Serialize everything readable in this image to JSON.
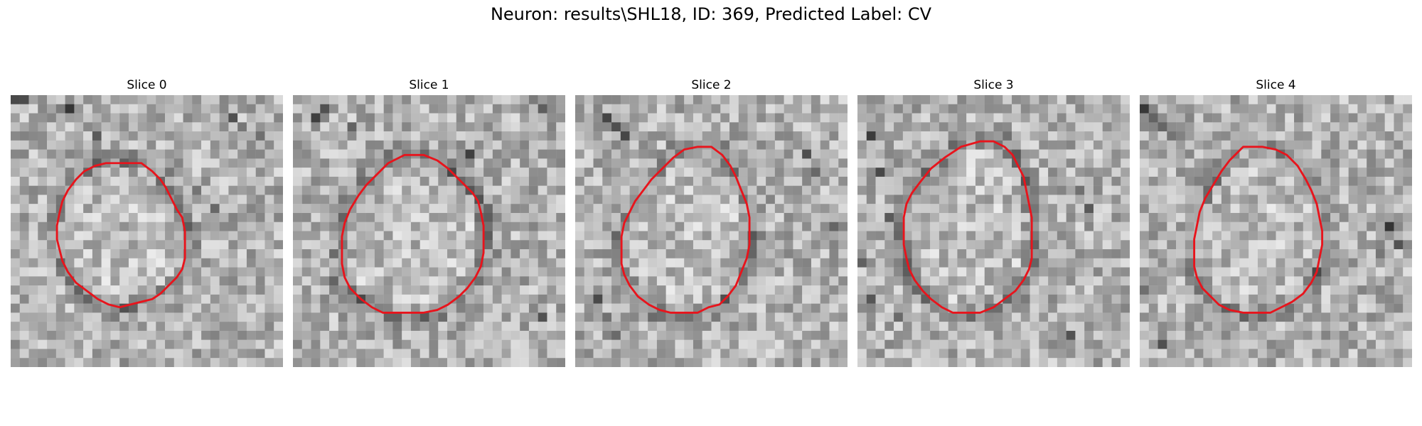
{
  "figure": {
    "title": "Neuron: results\\SHL18, ID: 369, Predicted Label: CV"
  },
  "slices": [
    {
      "label": "Slice 0",
      "seed": 11,
      "contour": [
        [
          40,
          25
        ],
        [
          48,
          25
        ],
        [
          52,
          28
        ],
        [
          55,
          31
        ],
        [
          57,
          34
        ],
        [
          59,
          38
        ],
        [
          61,
          42
        ],
        [
          63,
          45
        ],
        [
          64,
          50
        ],
        [
          64,
          55
        ],
        [
          64,
          60
        ],
        [
          63,
          64
        ],
        [
          61,
          67
        ],
        [
          58,
          70
        ],
        [
          55,
          73
        ],
        [
          52,
          75
        ],
        [
          48,
          76
        ],
        [
          44,
          77
        ],
        [
          40,
          78
        ],
        [
          36,
          77
        ],
        [
          32,
          75
        ],
        [
          28,
          72
        ],
        [
          24,
          69
        ],
        [
          21,
          65
        ],
        [
          19,
          61
        ],
        [
          18,
          57
        ],
        [
          17,
          53
        ],
        [
          17,
          48
        ],
        [
          18,
          43
        ],
        [
          19,
          39
        ],
        [
          21,
          35
        ],
        [
          24,
          31
        ],
        [
          27,
          28
        ],
        [
          31,
          26
        ],
        [
          35,
          25
        ]
      ],
      "grid_dark": [
        [
          0,
          0
        ],
        [
          1,
          0
        ],
        [
          5,
          1
        ],
        [
          6,
          1
        ],
        [
          8,
          3
        ],
        [
          9,
          4
        ],
        [
          24,
          2
        ],
        [
          25,
          3
        ],
        [
          27,
          4
        ],
        [
          26,
          5
        ],
        [
          20,
          10
        ],
        [
          22,
          12
        ]
      ]
    },
    {
      "label": "Slice 1",
      "seed": 23,
      "contour": [
        [
          41,
          22
        ],
        [
          48,
          22
        ],
        [
          53,
          24
        ],
        [
          57,
          27
        ],
        [
          60,
          30
        ],
        [
          63,
          33
        ],
        [
          66,
          36
        ],
        [
          68,
          39
        ],
        [
          69,
          43
        ],
        [
          70,
          48
        ],
        [
          70,
          53
        ],
        [
          70,
          58
        ],
        [
          69,
          63
        ],
        [
          67,
          67
        ],
        [
          64,
          71
        ],
        [
          61,
          74
        ],
        [
          57,
          77
        ],
        [
          53,
          79
        ],
        [
          48,
          80
        ],
        [
          43,
          80
        ],
        [
          38,
          80
        ],
        [
          33,
          80
        ],
        [
          29,
          78
        ],
        [
          25,
          75
        ],
        [
          21,
          71
        ],
        [
          19,
          67
        ],
        [
          18,
          62
        ],
        [
          18,
          57
        ],
        [
          18,
          52
        ],
        [
          19,
          47
        ],
        [
          21,
          42
        ],
        [
          24,
          37
        ],
        [
          27,
          33
        ],
        [
          31,
          29
        ],
        [
          35,
          25
        ]
      ],
      "grid_dark": [
        [
          3,
          1
        ],
        [
          2,
          2
        ],
        [
          6,
          3
        ],
        [
          18,
          5
        ],
        [
          19,
          6
        ],
        [
          26,
          0
        ],
        [
          27,
          1
        ],
        [
          4,
          20
        ],
        [
          5,
          22
        ],
        [
          27,
          24
        ]
      ]
    },
    {
      "label": "Slice 2",
      "seed": 37,
      "contour": [
        [
          45,
          19
        ],
        [
          50,
          19
        ],
        [
          54,
          22
        ],
        [
          57,
          26
        ],
        [
          59,
          30
        ],
        [
          61,
          35
        ],
        [
          63,
          40
        ],
        [
          64,
          45
        ],
        [
          64,
          50
        ],
        [
          64,
          55
        ],
        [
          63,
          60
        ],
        [
          61,
          65
        ],
        [
          59,
          70
        ],
        [
          56,
          74
        ],
        [
          53,
          77
        ],
        [
          49,
          78
        ],
        [
          45,
          80
        ],
        [
          40,
          80
        ],
        [
          35,
          80
        ],
        [
          31,
          79
        ],
        [
          27,
          77
        ],
        [
          23,
          74
        ],
        [
          20,
          70
        ],
        [
          18,
          66
        ],
        [
          17,
          62
        ],
        [
          17,
          57
        ],
        [
          17,
          52
        ],
        [
          18,
          47
        ],
        [
          20,
          43
        ],
        [
          22,
          39
        ],
        [
          25,
          35
        ],
        [
          28,
          31
        ],
        [
          32,
          27
        ],
        [
          36,
          23
        ],
        [
          40,
          20
        ]
      ],
      "grid_dark": [
        [
          3,
          2
        ],
        [
          4,
          3
        ],
        [
          5,
          4
        ],
        [
          2,
          22
        ],
        [
          3,
          24
        ],
        [
          4,
          26
        ],
        [
          25,
          6
        ],
        [
          26,
          8
        ],
        [
          28,
          14
        ],
        [
          27,
          20
        ]
      ]
    },
    {
      "label": "Slice 3",
      "seed": 53,
      "contour": [
        [
          45,
          17
        ],
        [
          50,
          17
        ],
        [
          54,
          19
        ],
        [
          57,
          22
        ],
        [
          59,
          26
        ],
        [
          61,
          30
        ],
        [
          62,
          35
        ],
        [
          63,
          40
        ],
        [
          64,
          45
        ],
        [
          64,
          50
        ],
        [
          64,
          55
        ],
        [
          64,
          60
        ],
        [
          63,
          64
        ],
        [
          61,
          68
        ],
        [
          58,
          72
        ],
        [
          54,
          75
        ],
        [
          50,
          78
        ],
        [
          45,
          80
        ],
        [
          40,
          80
        ],
        [
          35,
          80
        ],
        [
          31,
          78
        ],
        [
          27,
          75
        ],
        [
          24,
          72
        ],
        [
          21,
          68
        ],
        [
          19,
          64
        ],
        [
          18,
          60
        ],
        [
          17,
          55
        ],
        [
          17,
          50
        ],
        [
          17,
          45
        ],
        [
          18,
          40
        ],
        [
          20,
          36
        ],
        [
          23,
          32
        ],
        [
          27,
          27
        ],
        [
          32,
          23
        ],
        [
          38,
          19
        ]
      ],
      "grid_dark": [
        [
          1,
          4
        ],
        [
          2,
          8
        ],
        [
          3,
          13
        ],
        [
          0,
          18
        ],
        [
          1,
          22
        ],
        [
          4,
          24
        ],
        [
          5,
          26
        ],
        [
          24,
          10
        ],
        [
          25,
          12
        ],
        [
          23,
          26
        ]
      ]
    },
    {
      "label": "Slice 4",
      "seed": 71,
      "contour": [
        [
          38,
          19
        ],
        [
          45,
          19
        ],
        [
          50,
          20
        ],
        [
          54,
          22
        ],
        [
          58,
          26
        ],
        [
          61,
          31
        ],
        [
          63,
          35
        ],
        [
          65,
          40
        ],
        [
          66,
          45
        ],
        [
          67,
          50
        ],
        [
          67,
          55
        ],
        [
          66,
          60
        ],
        [
          65,
          65
        ],
        [
          63,
          69
        ],
        [
          60,
          73
        ],
        [
          56,
          76
        ],
        [
          52,
          78
        ],
        [
          48,
          80
        ],
        [
          43,
          80
        ],
        [
          38,
          80
        ],
        [
          33,
          79
        ],
        [
          29,
          77
        ],
        [
          26,
          74
        ],
        [
          23,
          71
        ],
        [
          21,
          67
        ],
        [
          20,
          63
        ],
        [
          20,
          58
        ],
        [
          20,
          53
        ],
        [
          21,
          48
        ],
        [
          22,
          43
        ],
        [
          24,
          38
        ],
        [
          27,
          33
        ],
        [
          30,
          28
        ],
        [
          33,
          24
        ],
        [
          36,
          21
        ]
      ],
      "grid_dark": [
        [
          0,
          1
        ],
        [
          1,
          2
        ],
        [
          2,
          3
        ],
        [
          3,
          4
        ],
        [
          0,
          21
        ],
        [
          1,
          23
        ],
        [
          2,
          27
        ],
        [
          27,
          14
        ],
        [
          28,
          16
        ],
        [
          26,
          17
        ]
      ]
    }
  ]
}
